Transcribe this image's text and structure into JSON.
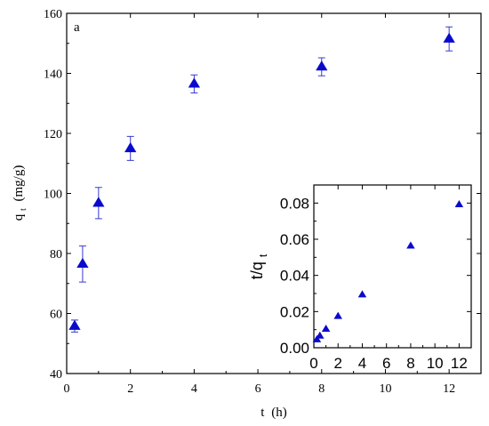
{
  "colors": {
    "marker": "#0a0acd",
    "errorbar": "#3a3ad0",
    "axis": "#000000"
  },
  "chart_data": [
    {
      "type": "scatter",
      "panel_label": "a",
      "xlabel_main": "t",
      "xlabel_unit": "(h)",
      "ylabel_main": "q",
      "ylabel_sub": "t",
      "ylabel_unit": "(mg/g)",
      "xlim": [
        0,
        13
      ],
      "ylim": [
        40,
        160
      ],
      "xticks": [
        "0",
        "2",
        "4",
        "6",
        "8",
        "10",
        "12"
      ],
      "yticks": [
        "40",
        "60",
        "80",
        "100",
        "120",
        "140",
        "160"
      ],
      "marker": "triangle",
      "grid": false,
      "points": [
        {
          "x": 0.25,
          "y": 55.8,
          "err": 2.0
        },
        {
          "x": 0.5,
          "y": 76.5,
          "err": 6.0
        },
        {
          "x": 1.0,
          "y": 96.8,
          "err": 5.2
        },
        {
          "x": 2.0,
          "y": 115.0,
          "err": 4.0
        },
        {
          "x": 4.0,
          "y": 136.5,
          "err": 3.0
        },
        {
          "x": 8.0,
          "y": 142.2,
          "err": 3.0
        },
        {
          "x": 12.0,
          "y": 151.5,
          "err": 4.0
        }
      ]
    },
    {
      "type": "scatter",
      "ylabel_main": "t/q",
      "ylabel_sub": "t",
      "xlim": [
        0,
        13
      ],
      "ylim": [
        0,
        0.09
      ],
      "xticks": [
        "0",
        "2",
        "4",
        "6",
        "8",
        "10",
        "12"
      ],
      "yticks": [
        "0.00",
        "0.02",
        "0.04",
        "0.06",
        "0.08"
      ],
      "marker": "triangle",
      "grid": false,
      "points": [
        {
          "x": 0.25,
          "y": 0.0045
        },
        {
          "x": 0.5,
          "y": 0.0065
        },
        {
          "x": 1.0,
          "y": 0.0103
        },
        {
          "x": 2.0,
          "y": 0.0174
        },
        {
          "x": 4.0,
          "y": 0.0293
        },
        {
          "x": 8.0,
          "y": 0.0563
        },
        {
          "x": 12.0,
          "y": 0.0792
        }
      ]
    }
  ]
}
